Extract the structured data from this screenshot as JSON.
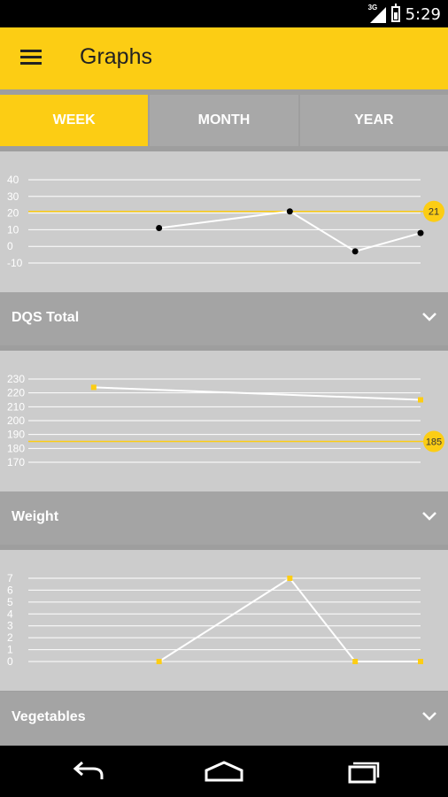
{
  "status_bar": {
    "time": "5:29",
    "network": "3G",
    "signal_icon": "signal-icon",
    "battery_icon": "battery-icon"
  },
  "app_bar": {
    "title": "Graphs",
    "menu_icon": "menu-icon"
  },
  "tabs": [
    {
      "label": "WEEK",
      "active": true
    },
    {
      "label": "MONTH",
      "active": false
    },
    {
      "label": "YEAR",
      "active": false
    }
  ],
  "colors": {
    "accent": "#fccd14",
    "panel": "#cccccc",
    "bar": "#a4a4a4"
  },
  "charts": [
    {
      "label": "DQS Total",
      "chart_data": {
        "type": "line",
        "ylim": [
          -10,
          40
        ],
        "yticks": [
          "40",
          "30",
          "20",
          "10",
          "0",
          "-10"
        ],
        "points": [
          [
            2,
            11
          ],
          [
            4,
            21
          ],
          [
            5,
            -3
          ],
          [
            6,
            8
          ]
        ],
        "target_value": "21",
        "target": 21,
        "xlim": [
          0,
          6
        ],
        "point_color": "#000000"
      }
    },
    {
      "label": "Weight",
      "chart_data": {
        "type": "line",
        "ylim": [
          170,
          230
        ],
        "yticks": [
          "230",
          "220",
          "210",
          "200",
          "190",
          "180",
          "170"
        ],
        "points": [
          [
            1,
            224
          ],
          [
            6,
            215
          ]
        ],
        "target_value": "185",
        "target": 185,
        "xlim": [
          0,
          6
        ],
        "point_color": "#fccd14"
      }
    },
    {
      "label": "Vegetables",
      "chart_data": {
        "type": "line",
        "ylim": [
          0,
          7
        ],
        "yticks": [
          "7",
          "6",
          "5",
          "4",
          "3",
          "2",
          "1",
          "0"
        ],
        "points": [
          [
            2,
            0
          ],
          [
            4,
            7
          ],
          [
            5,
            0
          ],
          [
            6,
            0
          ]
        ],
        "xlim": [
          0,
          6
        ],
        "point_color": "#fccd14"
      }
    }
  ],
  "nav": {
    "back_icon": "back-icon",
    "home_icon": "home-icon",
    "recents_icon": "recents-icon"
  }
}
